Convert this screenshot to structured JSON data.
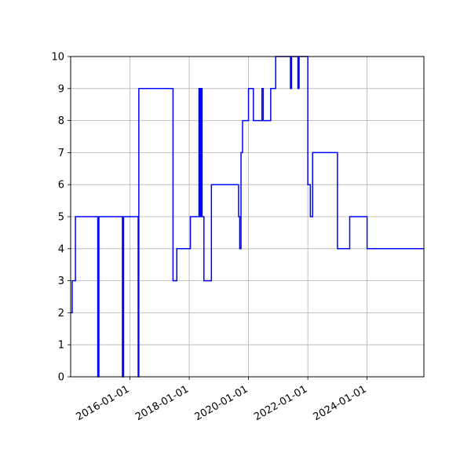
{
  "chart_data": {
    "type": "line",
    "title": "",
    "xlabel": "",
    "ylabel": "",
    "x_type": "date",
    "xlim": [
      "2014-01-01",
      "2025-12-01"
    ],
    "ylim": [
      0,
      10
    ],
    "grid": true,
    "legend": "none",
    "line_color": "#0000ff",
    "x_ticks": [
      "2016-01-01",
      "2018-01-01",
      "2020-01-01",
      "2022-01-01",
      "2024-01-01"
    ],
    "y_ticks": [
      "0",
      "1",
      "2",
      "3",
      "4",
      "5",
      "6",
      "7",
      "8",
      "9",
      "10"
    ],
    "series": [
      {
        "step": "post",
        "x": [
          "2014-01-01",
          "2014-01-20",
          "2014-03-01",
          "2014-03-20",
          "2014-12-01",
          "2014-12-15",
          "2015-01-01",
          "2015-10-01",
          "2015-10-15",
          "2015-11-01",
          "2016-04-01",
          "2016-04-12",
          "2016-04-20",
          "2017-06-15",
          "2017-08-01",
          "2018-01-15",
          "2018-05-01",
          "2018-05-12",
          "2018-05-25",
          "2018-06-08",
          "2018-06-20",
          "2018-07-01",
          "2018-10-01",
          "2018-11-01",
          "2019-05-01",
          "2019-09-01",
          "2019-09-15",
          "2019-10-01",
          "2019-10-20",
          "2020-01-01",
          "2020-03-01",
          "2020-06-01",
          "2020-06-15",
          "2020-07-01",
          "2020-07-20",
          "2020-08-01",
          "2020-10-01",
          "2020-11-01",
          "2020-12-01",
          "2021-06-01",
          "2021-06-15",
          "2021-09-01",
          "2021-09-15",
          "2022-01-01",
          "2022-02-01",
          "2022-03-01",
          "2022-06-01",
          "2023-01-01",
          "2023-06-01",
          "2023-09-01",
          "2024-01-01",
          "2025-12-01"
        ],
        "y": [
          2,
          3,
          5,
          5,
          0,
          5,
          5,
          0,
          5,
          5,
          5,
          0,
          9,
          3,
          4,
          5,
          9,
          5,
          9,
          5,
          5,
          3,
          6,
          6,
          6,
          5,
          4,
          7,
          8,
          9,
          8,
          8,
          9,
          8,
          8,
          8,
          9,
          9,
          10,
          9,
          10,
          9,
          10,
          6,
          5,
          7,
          7,
          4,
          5,
          5,
          4,
          4
        ]
      }
    ]
  }
}
